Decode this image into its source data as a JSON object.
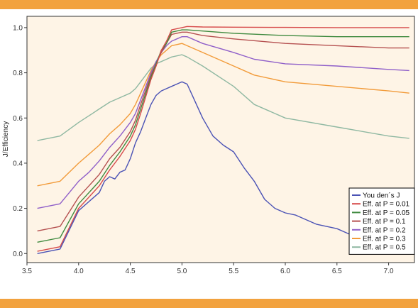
{
  "colors": {
    "band": "#f2a23e",
    "plot_background": "#fef4e6",
    "axis": "#333333"
  },
  "chart_data": {
    "type": "line",
    "title": "",
    "xlabel": "",
    "ylabel": "J/Efficiency",
    "xlim": [
      3.5,
      7.25
    ],
    "ylim": [
      -0.04,
      1.05
    ],
    "xticks": [
      3.5,
      4.0,
      4.5,
      5.0,
      5.5,
      6.0,
      6.5,
      7.0
    ],
    "xtick_labels": [
      "3.5",
      "4.0",
      "4.5",
      "5.0",
      "5.5",
      "6.0",
      "6.5",
      "7.0"
    ],
    "yticks": [
      0.0,
      0.2,
      0.4,
      0.6,
      0.8,
      1.0
    ],
    "ytick_labels": [
      "0.0",
      "0.2",
      "0.4",
      "0.6",
      "0.8",
      "1.0"
    ],
    "grid": false,
    "legend_position": "bottom-right",
    "series": [
      {
        "name": "You den´s J",
        "color": "#4a52b5",
        "x": [
          3.6,
          3.82,
          4.0,
          4.1,
          4.2,
          4.25,
          4.3,
          4.35,
          4.4,
          4.45,
          4.5,
          4.55,
          4.6,
          4.65,
          4.7,
          4.75,
          4.8,
          4.85,
          4.9,
          4.95,
          5.0,
          5.05,
          5.1,
          5.2,
          5.3,
          5.4,
          5.5,
          5.6,
          5.7,
          5.8,
          5.9,
          6.0,
          6.1,
          6.2,
          6.3,
          6.4,
          6.5,
          6.6,
          6.65
        ],
        "y": [
          0.0,
          0.02,
          0.19,
          0.23,
          0.27,
          0.32,
          0.34,
          0.33,
          0.36,
          0.37,
          0.42,
          0.49,
          0.54,
          0.6,
          0.66,
          0.7,
          0.72,
          0.73,
          0.74,
          0.75,
          0.76,
          0.75,
          0.7,
          0.6,
          0.52,
          0.48,
          0.45,
          0.38,
          0.32,
          0.24,
          0.2,
          0.18,
          0.17,
          0.15,
          0.13,
          0.12,
          0.11,
          0.09,
          0.08
        ]
      },
      {
        "name": "Eff. at P = 0.01",
        "color": "#d64a4a",
        "x": [
          3.6,
          3.82,
          4.0,
          4.1,
          4.2,
          4.3,
          4.4,
          4.5,
          4.55,
          4.6,
          4.7,
          4.75,
          4.8,
          4.85,
          4.9,
          5.0,
          5.05,
          5.2,
          5.5,
          6.0,
          6.5,
          7.0,
          7.2
        ],
        "y": [
          0.01,
          0.03,
          0.2,
          0.25,
          0.3,
          0.37,
          0.43,
          0.5,
          0.55,
          0.62,
          0.77,
          0.83,
          0.9,
          0.94,
          0.99,
          1.0,
          1.005,
          1.003,
          1.002,
          1.001,
          1.0,
          1.0,
          1.0
        ]
      },
      {
        "name": "Eff. at P = 0.05",
        "color": "#3f8a3f",
        "x": [
          3.6,
          3.82,
          4.0,
          4.1,
          4.2,
          4.3,
          4.4,
          4.5,
          4.55,
          4.6,
          4.7,
          4.75,
          4.8,
          4.85,
          4.9,
          5.0,
          5.05,
          5.2,
          5.5,
          6.0,
          6.5,
          7.0,
          7.2
        ],
        "y": [
          0.05,
          0.07,
          0.22,
          0.27,
          0.32,
          0.39,
          0.45,
          0.52,
          0.57,
          0.64,
          0.78,
          0.84,
          0.9,
          0.93,
          0.98,
          0.99,
          0.99,
          0.985,
          0.975,
          0.965,
          0.96,
          0.96,
          0.96
        ]
      },
      {
        "name": "Eff. at P = 0.1",
        "color": "#b55050",
        "x": [
          3.6,
          3.82,
          4.0,
          4.1,
          4.2,
          4.3,
          4.4,
          4.5,
          4.55,
          4.6,
          4.7,
          4.75,
          4.8,
          4.85,
          4.9,
          5.0,
          5.05,
          5.2,
          5.5,
          6.0,
          6.5,
          7.0,
          7.2
        ],
        "y": [
          0.1,
          0.12,
          0.25,
          0.3,
          0.35,
          0.42,
          0.47,
          0.54,
          0.59,
          0.66,
          0.79,
          0.84,
          0.89,
          0.93,
          0.97,
          0.98,
          0.98,
          0.965,
          0.95,
          0.93,
          0.92,
          0.91,
          0.91
        ]
      },
      {
        "name": "Eff. at P = 0.2",
        "color": "#8f5fc9",
        "x": [
          3.6,
          3.82,
          4.0,
          4.1,
          4.2,
          4.3,
          4.4,
          4.5,
          4.55,
          4.6,
          4.7,
          4.75,
          4.8,
          4.85,
          4.9,
          5.0,
          5.05,
          5.2,
          5.5,
          5.7,
          6.0,
          6.5,
          7.0,
          7.2
        ],
        "y": [
          0.2,
          0.22,
          0.32,
          0.36,
          0.41,
          0.47,
          0.52,
          0.58,
          0.62,
          0.68,
          0.8,
          0.85,
          0.89,
          0.92,
          0.94,
          0.96,
          0.96,
          0.93,
          0.89,
          0.86,
          0.84,
          0.83,
          0.815,
          0.81
        ]
      },
      {
        "name": "Eff. at P = 0.3",
        "color": "#f29b3a",
        "x": [
          3.6,
          3.82,
          4.0,
          4.1,
          4.2,
          4.3,
          4.4,
          4.5,
          4.55,
          4.6,
          4.7,
          4.75,
          4.8,
          4.85,
          4.9,
          5.0,
          5.05,
          5.2,
          5.5,
          5.7,
          6.0,
          6.5,
          7.0,
          7.2
        ],
        "y": [
          0.3,
          0.32,
          0.4,
          0.44,
          0.48,
          0.53,
          0.57,
          0.62,
          0.66,
          0.71,
          0.81,
          0.85,
          0.88,
          0.9,
          0.92,
          0.93,
          0.92,
          0.89,
          0.83,
          0.79,
          0.76,
          0.74,
          0.72,
          0.71
        ]
      },
      {
        "name": "Eff. at P = 0.5",
        "color": "#8fb8a2",
        "x": [
          3.6,
          3.82,
          4.0,
          4.1,
          4.2,
          4.3,
          4.4,
          4.5,
          4.55,
          4.6,
          4.7,
          4.75,
          4.8,
          4.85,
          4.9,
          5.0,
          5.05,
          5.2,
          5.5,
          5.7,
          6.0,
          6.5,
          7.0,
          7.2
        ],
        "y": [
          0.5,
          0.52,
          0.58,
          0.61,
          0.64,
          0.67,
          0.69,
          0.71,
          0.73,
          0.76,
          0.82,
          0.84,
          0.85,
          0.86,
          0.87,
          0.88,
          0.87,
          0.83,
          0.74,
          0.66,
          0.6,
          0.56,
          0.52,
          0.51
        ]
      }
    ]
  }
}
